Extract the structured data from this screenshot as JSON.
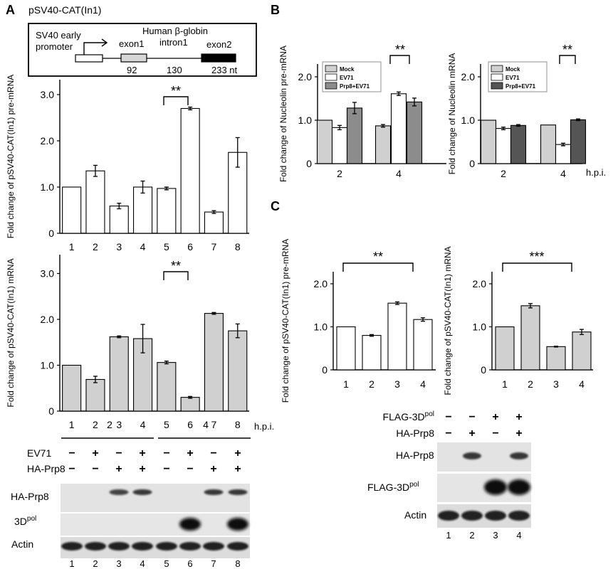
{
  "panel_A": {
    "letter": "A",
    "construct_title": "pSV40-CAT(In1)",
    "schematic": {
      "promoter_label_line1": "SV40 early",
      "promoter_label_line2": "promoter",
      "intron_title": "Human β-globin",
      "intron_label": "intron1",
      "exon1_label": "exon1",
      "exon2_label": "exon2",
      "size_exon1": "92",
      "size_intron": "130",
      "size_exon2": "233 nt"
    },
    "pre_mrna_sig": "**",
    "mrna_sig": "**",
    "hpi_label": "h.p.i.",
    "hpi_groups": [
      "2",
      "4"
    ],
    "blot_rows": [
      {
        "label": "EV71",
        "signs": [
          "−",
          "+",
          "−",
          "+",
          "−",
          "+",
          "−",
          "+"
        ]
      },
      {
        "label": "HA-Prp8",
        "signs": [
          "−",
          "−",
          "+",
          "+",
          "−",
          "−",
          "+",
          "+"
        ]
      }
    ],
    "blot_labels": {
      "prp8": "HA-Prp8",
      "pol_base": "3D",
      "pol_sup": "pol",
      "actin": "Actin"
    },
    "lane_numbers": [
      "1",
      "2",
      "3",
      "4",
      "5",
      "6",
      "7",
      "8"
    ]
  },
  "panel_B": {
    "letter": "B",
    "hpi_label": "h.p.i.",
    "sig_left": "**",
    "sig_right": "**",
    "legend": [
      "Mock",
      "EV71",
      "Prp8+EV71"
    ]
  },
  "panel_C": {
    "letter": "C",
    "sig_left": "**",
    "sig_right": "***",
    "blot_rows": [
      {
        "label_base": "FLAG-3D",
        "label_sup": "pol",
        "signs": [
          "−",
          "−",
          "+",
          "+"
        ]
      },
      {
        "label_base": "HA-Prp8",
        "label_sup": "",
        "signs": [
          "−",
          "+",
          "−",
          "+"
        ]
      }
    ],
    "blot_labels": {
      "prp8": "HA-Prp8",
      "flag_base": "FLAG-3D",
      "flag_sup": "pol",
      "actin": "Actin"
    },
    "lane_numbers": [
      "1",
      "2",
      "3",
      "4"
    ]
  },
  "chart_data": [
    {
      "id": "A-pre",
      "type": "bar",
      "ylabel": "Fold change of pSV40-CAT(In1) pre-mRNA",
      "ylim": [
        0,
        3.5
      ],
      "yticks": [
        "0",
        "1.0",
        "2.0",
        "3.0"
      ],
      "categories": [
        "1",
        "2",
        "3",
        "4",
        "5",
        "6",
        "7",
        "8"
      ],
      "series": [
        {
          "values": [
            1.0,
            1.35,
            0.59,
            1.0,
            0.97,
            2.7,
            0.46,
            1.75
          ],
          "errors": [
            0,
            0.12,
            0.06,
            0.13,
            0.03,
            0.03,
            0.03,
            0.32
          ],
          "color": "#ffffff"
        }
      ]
    },
    {
      "id": "A-mrna",
      "type": "bar",
      "ylabel": "Fold change of pSV40-CAT(In1) mRNA",
      "ylim": [
        0,
        3.5
      ],
      "yticks": [
        "0",
        "1.0",
        "2.0",
        "3.0"
      ],
      "categories": [
        "1",
        "2",
        "3",
        "4",
        "5",
        "6",
        "7",
        "8"
      ],
      "series": [
        {
          "values": [
            1.0,
            0.69,
            1.62,
            1.58,
            1.06,
            0.3,
            2.13,
            1.75
          ],
          "errors": [
            0,
            0.07,
            0.02,
            0.31,
            0.03,
            0.02,
            0.02,
            0.15
          ],
          "color": "#d0d0d0"
        }
      ]
    },
    {
      "id": "B-pre",
      "type": "bar",
      "ylabel": "Fold change of Nucleolin pre-mRNA",
      "ylim": [
        0,
        2.0
      ],
      "yticks": [
        "0",
        "1.0",
        "2.0"
      ],
      "categories": [
        "2",
        "4"
      ],
      "series": [
        {
          "name": "Mock",
          "values": [
            1.0,
            0.87
          ],
          "errors": [
            0,
            0.03
          ],
          "color": "#d0d0d0"
        },
        {
          "name": "EV71",
          "values": [
            0.83,
            1.61
          ],
          "errors": [
            0.05,
            0.04
          ],
          "color": "#ffffff"
        },
        {
          "name": "Prp8+EV71",
          "values": [
            1.28,
            1.42
          ],
          "errors": [
            0.13,
            0.09
          ],
          "color": "#8c8c8c"
        }
      ]
    },
    {
      "id": "B-mrna",
      "type": "bar",
      "ylabel": "Fold change of Nucleolin mRNA",
      "ylim": [
        0,
        2.0
      ],
      "yticks": [
        "0",
        "1.0",
        "2.0"
      ],
      "categories": [
        "2",
        "4"
      ],
      "series": [
        {
          "name": "Mock",
          "values": [
            1.0,
            0.89
          ],
          "errors": [
            0,
            0
          ],
          "color": "#d0d0d0"
        },
        {
          "name": "EV71",
          "values": [
            0.81,
            0.44
          ],
          "errors": [
            0.03,
            0.03
          ],
          "color": "#ffffff"
        },
        {
          "name": "Prp8+EV71",
          "values": [
            0.88,
            1.01
          ],
          "errors": [
            0.02,
            0.02
          ],
          "color": "#555555"
        }
      ]
    },
    {
      "id": "C-pre",
      "type": "bar",
      "ylabel": "Fold change of pSV40-CAT(In1) pre-mRNA",
      "ylim": [
        0,
        2.0
      ],
      "yticks": [
        "0",
        "1.0",
        "2.0"
      ],
      "categories": [
        "1",
        "2",
        "3",
        "4"
      ],
      "series": [
        {
          "values": [
            1.0,
            0.8,
            1.55,
            1.17
          ],
          "errors": [
            0,
            0.02,
            0.03,
            0.04
          ],
          "color": "#ffffff"
        }
      ]
    },
    {
      "id": "C-mrna",
      "type": "bar",
      "ylabel": "Fold change of pSV40-CAT(In1) mRNA",
      "ylim": [
        0,
        2.0
      ],
      "yticks": [
        "0",
        "1.0",
        "2.0"
      ],
      "categories": [
        "1",
        "2",
        "3",
        "4"
      ],
      "series": [
        {
          "values": [
            1.0,
            1.49,
            0.54,
            0.88
          ],
          "errors": [
            0,
            0.05,
            0.01,
            0.06
          ],
          "color": "#d0d0d0"
        }
      ]
    }
  ]
}
